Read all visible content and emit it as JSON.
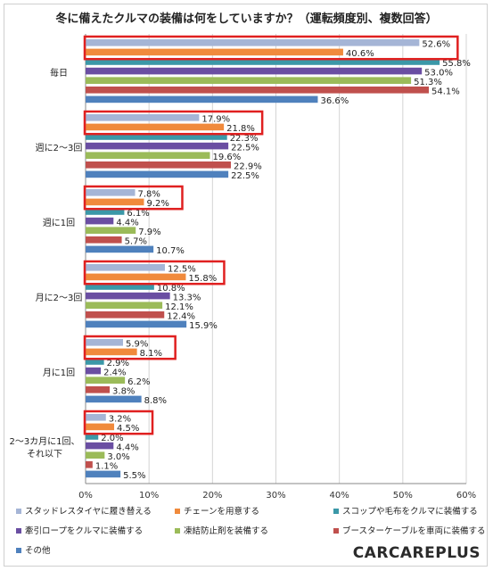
{
  "logo_text": "CARCAREPLUS",
  "chart_data": {
    "type": "bar",
    "orientation": "horizontal",
    "title": "冬に備えたクルマの装備は何をしていますか？（運転頻度別、複数回答）",
    "xlabel": "",
    "ylabel": "",
    "xlim": [
      0,
      60
    ],
    "xticks": [
      "0%",
      "10%",
      "20%",
      "30%",
      "40%",
      "50%",
      "60%"
    ],
    "grid": true,
    "legend_position": "bottom",
    "categories": [
      "毎日",
      "週に2～3回",
      "週に1回",
      "月に2～3回",
      "月に1回",
      "2～3カ月に1回、それ以下"
    ],
    "series": [
      {
        "name": "スタッドレスタイヤに履き替える",
        "color": "#a5b5d6",
        "values": [
          52.6,
          17.9,
          7.8,
          12.5,
          5.9,
          3.2
        ]
      },
      {
        "name": "チェーンを用意する",
        "color": "#f08a3c",
        "values": [
          40.6,
          21.8,
          9.2,
          15.8,
          8.1,
          4.5
        ]
      },
      {
        "name": "スコップや毛布をクルマに装備する",
        "color": "#3b98a8",
        "values": [
          55.8,
          22.3,
          6.1,
          10.8,
          2.9,
          2.0
        ]
      },
      {
        "name": "牽引ロープをクルマに装備する",
        "color": "#6a4ea2",
        "values": [
          53.0,
          22.5,
          4.4,
          13.3,
          2.4,
          4.4
        ]
      },
      {
        "name": "凍結防止剤を装備する",
        "color": "#9bbb59",
        "values": [
          51.3,
          19.6,
          7.9,
          12.1,
          6.2,
          3.0
        ]
      },
      {
        "name": "ブースターケーブルを車両に装備する",
        "color": "#c0504d",
        "values": [
          54.1,
          22.9,
          5.7,
          12.4,
          3.8,
          1.1
        ]
      },
      {
        "name": "その他",
        "color": "#4f81bd",
        "values": [
          36.6,
          22.5,
          10.7,
          15.9,
          8.8,
          5.5
        ]
      }
    ]
  }
}
